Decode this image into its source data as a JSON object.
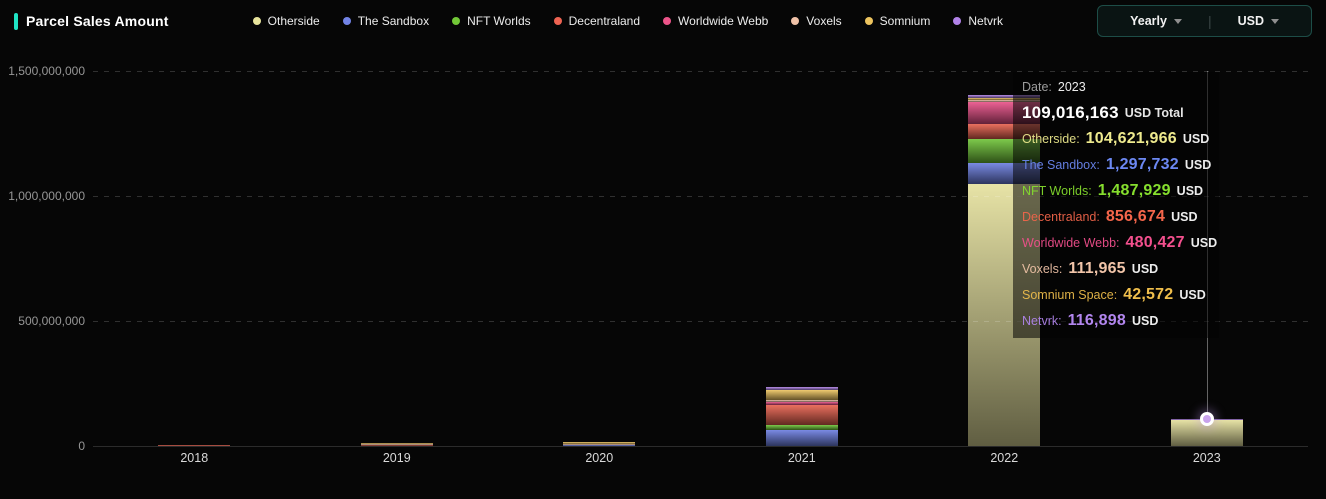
{
  "header": {
    "title": "Parcel Sales Amount",
    "accent_color": "#1fe3c4",
    "controls": {
      "period_label": "Yearly",
      "separator": "|",
      "currency_label": "USD",
      "border_color": "#1d4d47"
    }
  },
  "legend": [
    {
      "name": "Otherside",
      "color": "#e8e49c"
    },
    {
      "name": "The Sandbox",
      "color": "#7283e6"
    },
    {
      "name": "NFT Worlds",
      "color": "#72c837"
    },
    {
      "name": "Decentraland",
      "color": "#ee6352"
    },
    {
      "name": "Worldwide Webb",
      "color": "#ec5489"
    },
    {
      "name": "Voxels",
      "color": "#f0c2a8"
    },
    {
      "name": "Somnium",
      "color": "#edc45f"
    },
    {
      "name": "Netvrk",
      "color": "#b182e8"
    }
  ],
  "chart_data": {
    "type": "bar",
    "stacked": true,
    "title": "Parcel Sales Amount",
    "xlabel": "",
    "ylabel": "USD",
    "ylim": [
      0,
      1500000000
    ],
    "grid": "horizontal-dashed",
    "legend_position": "top",
    "categories": [
      "2018",
      "2019",
      "2020",
      "2021",
      "2022",
      "2023"
    ],
    "ytick_values": [
      0,
      500000000,
      1000000000,
      1500000000
    ],
    "ytick_labels": [
      "0",
      "500,000,000",
      "1,000,000,000",
      "1,500,000,000"
    ],
    "series": [
      {
        "name": "Otherside",
        "color": "#e4e09c",
        "values": [
          0,
          0,
          0,
          0,
          1050000000,
          104621966
        ]
      },
      {
        "name": "The Sandbox",
        "color": "#6b7de0",
        "values": [
          0,
          2000000,
          4000000,
          65000000,
          84000000,
          1297732
        ]
      },
      {
        "name": "NFT Worlds",
        "color": "#6ec437",
        "values": [
          0,
          0,
          0,
          20000000,
          96000000,
          1487929
        ]
      },
      {
        "name": "Decentraland",
        "color": "#e8604d",
        "values": [
          3000000,
          6000000,
          2000000,
          80000000,
          60000000,
          856674
        ]
      },
      {
        "name": "Worldwide Webb",
        "color": "#ea4f88",
        "values": [
          0,
          0,
          0,
          12000000,
          88000000,
          480427
        ]
      },
      {
        "name": "Voxels",
        "color": "#f0c2a8",
        "values": [
          0,
          1000000,
          2000000,
          8000000,
          5000000,
          111965
        ]
      },
      {
        "name": "Somnium",
        "color": "#edc45f",
        "values": [
          0,
          2000000,
          8000000,
          40000000,
          8000000,
          42572
        ]
      },
      {
        "name": "Netvrk",
        "color": "#b182e8",
        "values": [
          0,
          0,
          0,
          12000000,
          12000000,
          116898
        ]
      }
    ],
    "hovered_category": "2023",
    "hovered_total": 109016163
  },
  "tooltip": {
    "date_label": "Date:",
    "date_value": "2023",
    "total_value": "109,016,163",
    "total_suffix": "USD Total",
    "rows": [
      {
        "label": "Otherside:",
        "value": "104,621,966",
        "suffix": "USD",
        "color": "#eeea8e"
      },
      {
        "label": "The Sandbox:",
        "value": "1,297,732",
        "suffix": "USD",
        "color": "#6c88f2"
      },
      {
        "label": "NFT Worlds:",
        "value": "1,487,929",
        "suffix": "USD",
        "color": "#86df2e"
      },
      {
        "label": "Decentraland:",
        "value": "856,674",
        "suffix": "USD",
        "color": "#f5664b"
      },
      {
        "label": "Worldwide Webb:",
        "value": "480,427",
        "suffix": "USD",
        "color": "#f4508e"
      },
      {
        "label": "Voxels:",
        "value": "111,965",
        "suffix": "USD",
        "color": "#f2c5a9"
      },
      {
        "label": "Somnium Space:",
        "value": "42,572",
        "suffix": "USD",
        "color": "#f0bf4c"
      },
      {
        "label": "Netvrk:",
        "value": "116,898",
        "suffix": "USD",
        "color": "#b286ee"
      }
    ]
  },
  "marker": {
    "fill_color": "#c9a2ec"
  }
}
